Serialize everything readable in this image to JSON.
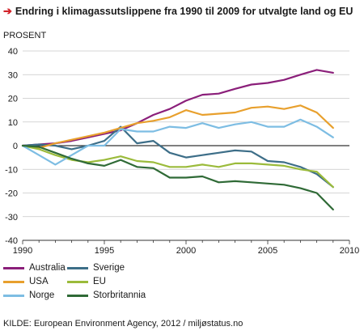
{
  "header": {
    "title": "Endring i klimagassutslippene fra 1990 til 2009 for utvalgte land og EU"
  },
  "icons": {
    "title_marker": "arrow-right-icon"
  },
  "colors": {
    "title_arrow": "#d2232a"
  },
  "source": "KILDE: European Environment Agency, 2012 / miljøstatus.no",
  "chart_data": {
    "type": "line",
    "title": "Endring i klimagassutslippene fra 1990 til 2009 for utvalgte land og EU",
    "xlabel": "",
    "ylabel": "PROSENT",
    "xlim": [
      1990,
      2010
    ],
    "ylim": [
      -40,
      40
    ],
    "xticks": [
      1990,
      1995,
      2000,
      2005,
      2010
    ],
    "yticks": [
      -40,
      -30,
      -20,
      -10,
      0,
      10,
      20,
      30,
      40
    ],
    "grid": "horizontal",
    "legend_position": "bottom",
    "x": [
      1990,
      1991,
      1992,
      1993,
      1994,
      1995,
      1996,
      1997,
      1998,
      1999,
      2000,
      2001,
      2002,
      2003,
      2004,
      2005,
      2006,
      2007,
      2008,
      2009
    ],
    "series": [
      {
        "name": "Australia",
        "color": "#8b1f7a",
        "values": [
          0,
          0.5,
          1,
          2,
          3.5,
          5,
          6.5,
          9.5,
          13,
          15.5,
          19,
          21.5,
          22,
          24,
          25.8,
          26.5,
          27.8,
          30,
          32,
          30.8
        ]
      },
      {
        "name": "Sverige",
        "color": "#3d6e88",
        "values": [
          0,
          0.5,
          0,
          -1.5,
          0,
          2,
          8,
          1,
          2,
          -3,
          -5,
          -4,
          -3,
          -2,
          -2.5,
          -6.5,
          -7,
          -9,
          -12,
          -17.5
        ]
      },
      {
        "name": "USA",
        "color": "#e8a02d",
        "values": [
          0,
          -1,
          1,
          2.5,
          4,
          5.5,
          7.5,
          9.5,
          10.5,
          12,
          15,
          13,
          13.5,
          14,
          16,
          16.5,
          15.5,
          17,
          14,
          7.5
        ]
      },
      {
        "name": "EU",
        "color": "#9bbb3b",
        "values": [
          0,
          -1.5,
          -4,
          -6,
          -7,
          -6,
          -4.5,
          -6.5,
          -7,
          -9,
          -9,
          -8,
          -9,
          -7.5,
          -7.5,
          -8,
          -8.5,
          -10,
          -11,
          -17.5
        ]
      },
      {
        "name": "Norge",
        "color": "#7dbde3",
        "values": [
          0,
          -4,
          -8,
          -4,
          0,
          0,
          7,
          6,
          6,
          8,
          7.5,
          9.5,
          7.5,
          9,
          10,
          8,
          8,
          11,
          8,
          3.5
        ]
      },
      {
        "name": "Storbritannia",
        "color": "#2f6a36",
        "values": [
          0,
          -0.5,
          -3,
          -5.5,
          -7.5,
          -8.5,
          -6,
          -9,
          -9.5,
          -13.5,
          -13.5,
          -13,
          -15.5,
          -15,
          -15.5,
          -16,
          -16.5,
          -18,
          -20,
          -27
        ]
      }
    ]
  }
}
